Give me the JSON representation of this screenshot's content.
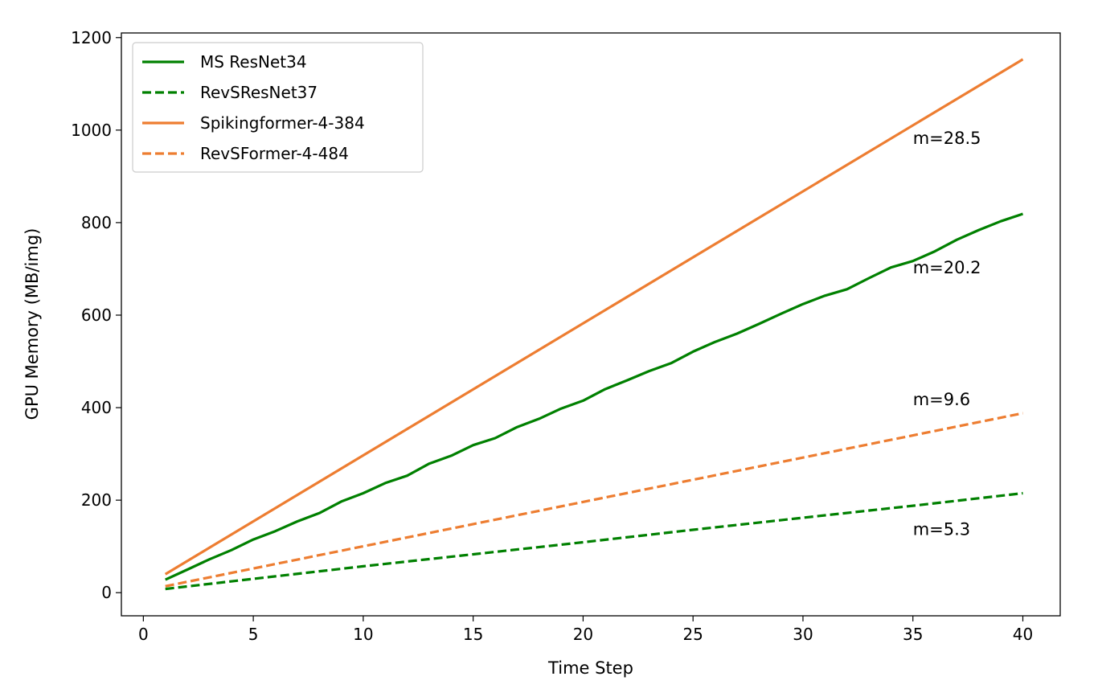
{
  "chart_data": {
    "type": "line",
    "xlabel": "Time Step",
    "ylabel": "GPU Memory (MB/img)",
    "xlim": [
      -1,
      41.7
    ],
    "ylim": [
      -50,
      1210
    ],
    "xticks": [
      0,
      5,
      10,
      15,
      20,
      25,
      30,
      35,
      40
    ],
    "yticks": [
      0,
      200,
      400,
      600,
      800,
      1000,
      1200
    ],
    "grid": false,
    "legend_position": "top-left",
    "series": [
      {
        "name": "MS ResNet34",
        "color": "#008000",
        "style": "solid",
        "x": [
          1,
          2,
          3,
          4,
          5,
          6,
          7,
          8,
          9,
          10,
          11,
          12,
          13,
          14,
          15,
          16,
          17,
          18,
          19,
          20,
          21,
          22,
          23,
          24,
          25,
          26,
          27,
          28,
          29,
          30,
          31,
          32,
          33,
          34,
          35,
          36,
          37,
          38,
          39,
          40
        ],
        "values": [
          28,
          50,
          72,
          92,
          115,
          133,
          154,
          172,
          197,
          215,
          237,
          253,
          279,
          296,
          319,
          334,
          358,
          376,
          398,
          415,
          440,
          459,
          479,
          496,
          521,
          542,
          560,
          581,
          603,
          624,
          642,
          656,
          680,
          703,
          717,
          738,
          763,
          784,
          803,
          819
        ]
      },
      {
        "name": "RevSResNet37",
        "color": "#008000",
        "style": "dashed",
        "x": [
          1,
          5,
          10,
          15,
          20,
          25,
          30,
          35,
          40
        ],
        "values": [
          8,
          30,
          57,
          83,
          109,
          136,
          162,
          188,
          215
        ]
      },
      {
        "name": "Spikingformer-4-384",
        "color": "#ED7D31",
        "style": "solid",
        "x": [
          1,
          3,
          40
        ],
        "values": [
          40,
          97,
          1153
        ]
      },
      {
        "name": "RevSFormer-4-484",
        "color": "#ED7D31",
        "style": "dashed",
        "x": [
          1,
          40
        ],
        "values": [
          14,
          388
        ]
      }
    ],
    "annotations": [
      {
        "text": "m=28.5",
        "x": 35,
        "y": 970
      },
      {
        "text": "m=20.2",
        "x": 35,
        "y": 690
      },
      {
        "text": "m=9.6",
        "x": 35,
        "y": 405
      },
      {
        "text": "m=5.3",
        "x": 35,
        "y": 125
      }
    ]
  }
}
